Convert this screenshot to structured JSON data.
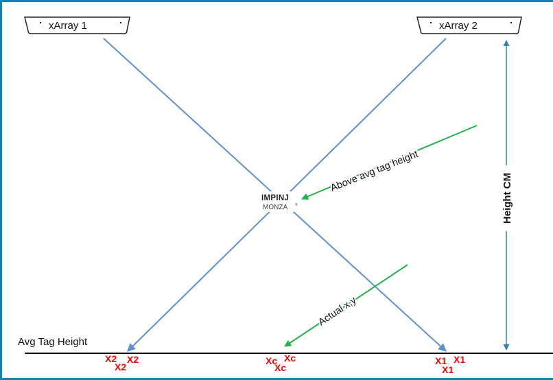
{
  "colors": {
    "frame": "#1683b4",
    "beam_line": "#5b8fd6",
    "height_arrow": "#2e86a6",
    "annotation_arrow": "#21b24b",
    "marker_red": "#ff0000",
    "ground_line": "#111111"
  },
  "readers": [
    {
      "label": "xArray 1"
    },
    {
      "label": "xArray 2"
    }
  ],
  "tag_logo": {
    "brand": "IMPINJ",
    "product": "MONZA",
    "mark": "®"
  },
  "annotations": {
    "above_avg": "Above avg tag height",
    "actual_xy": "Actual x,y"
  },
  "height_label": "Height CM",
  "avg_tag_height_label": "Avg Tag Height",
  "markers": {
    "x2": [
      "X2",
      "X2",
      "X2"
    ],
    "xc": [
      "Xc",
      "Xc",
      "Xc"
    ],
    "x1": [
      "X1",
      "X1",
      "X1"
    ]
  }
}
